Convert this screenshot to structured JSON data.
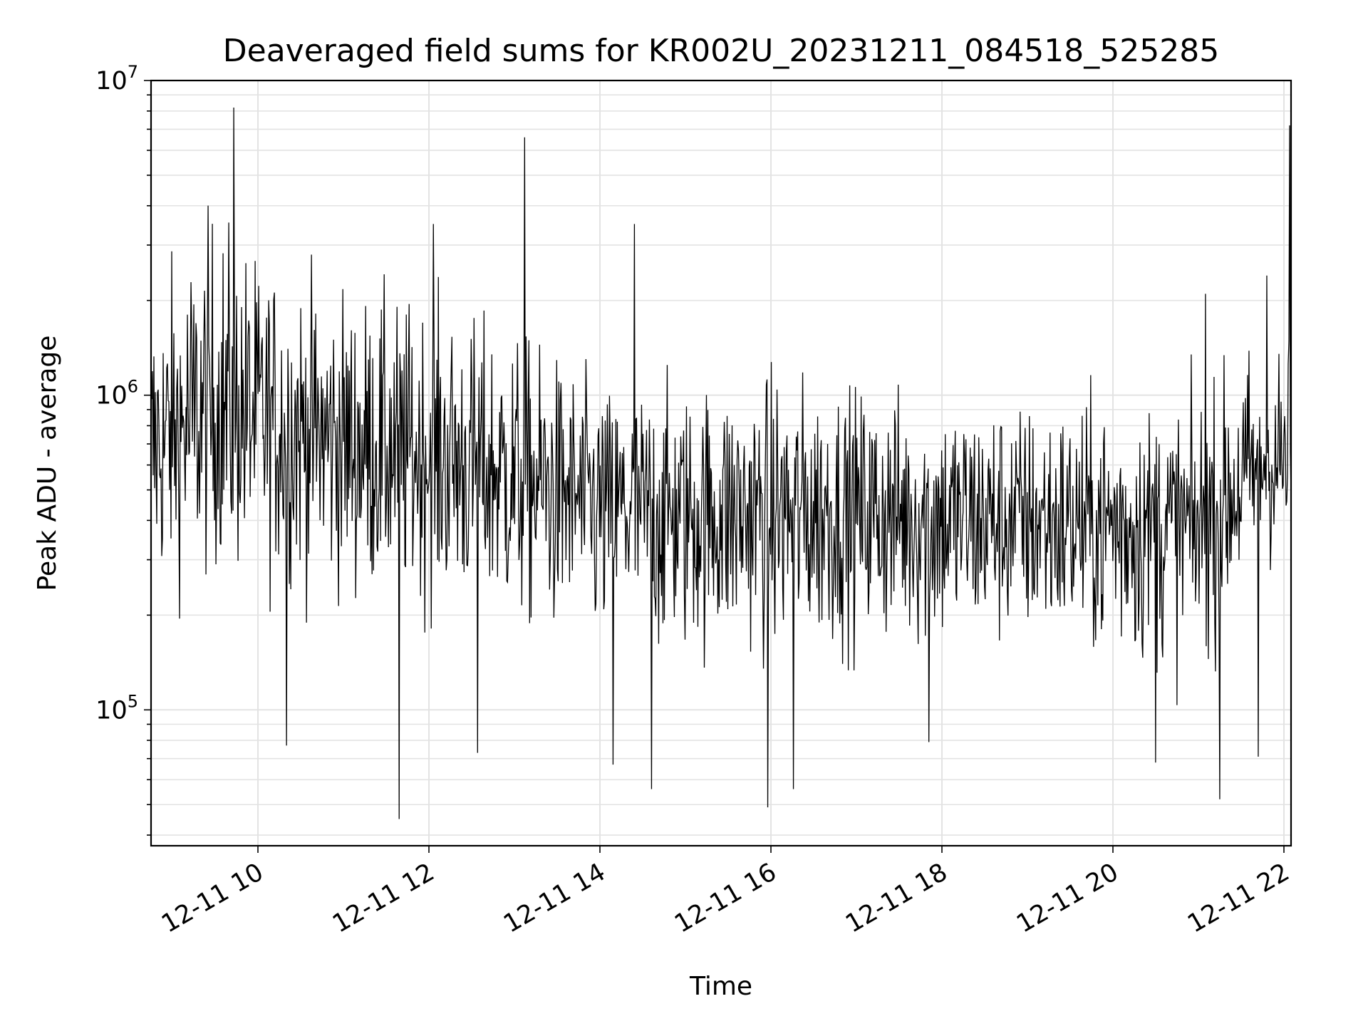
{
  "chart_data": {
    "type": "line",
    "title": "Deaveraged field sums for KR002U_20231211_084518_525285",
    "xlabel": "Time",
    "ylabel": "Peak ADU - average",
    "yscale": "log",
    "ylim": [
      37000,
      10000000
    ],
    "xlim": [
      "2023-12-11 08:45",
      "2023-12-11 22:05"
    ],
    "x_ticks": [
      "12-11 10",
      "12-11 12",
      "12-11 14",
      "12-11 16",
      "12-11 18",
      "12-11 20",
      "12-11 22"
    ],
    "y_ticks": [
      {
        "base": "10",
        "exp": "5"
      },
      {
        "base": "10",
        "exp": "6"
      },
      {
        "base": "10",
        "exp": "7"
      }
    ],
    "grid": true,
    "line_color": "#000000",
    "x_start": "2023-12-11 08:45",
    "x_end": "2023-12-11 22:05",
    "n_points": 1600,
    "series": [
      {
        "envelope": {
          "times": [
            "2023-12-11 08:45",
            "2023-12-11 09:30",
            "2023-12-11 10:00",
            "2023-12-11 11:00",
            "2023-12-11 12:00",
            "2023-12-11 13:00",
            "2023-12-11 14:00",
            "2023-12-11 15:00",
            "2023-12-11 16:00",
            "2023-12-11 17:00",
            "2023-12-11 18:00",
            "2023-12-11 19:00",
            "2023-12-11 20:00",
            "2023-12-11 21:00",
            "2023-12-11 21:45",
            "2023-12-11 22:05"
          ],
          "median": [
            650000,
            900000,
            850000,
            700000,
            650000,
            550000,
            450000,
            420000,
            420000,
            430000,
            410000,
            400000,
            390000,
            380000,
            600000,
            600000
          ],
          "low": [
            250000,
            300000,
            280000,
            250000,
            230000,
            200000,
            160000,
            160000,
            160000,
            170000,
            160000,
            170000,
            150000,
            140000,
            300000,
            300000
          ],
          "high": [
            2000000,
            3500000,
            2500000,
            2000000,
            1800000,
            1500000,
            1000000,
            1000000,
            1100000,
            1000000,
            950000,
            900000,
            900000,
            900000,
            1500000,
            1500000
          ]
        },
        "spikes": [
          {
            "t": "2023-12-11 09:43",
            "v": 8200000
          },
          {
            "t": "2023-12-11 13:07",
            "v": 6600000
          },
          {
            "t": "2023-12-11 14:24",
            "v": 3500000
          },
          {
            "t": "2023-12-11 12:03",
            "v": 3500000
          },
          {
            "t": "2023-12-11 15:58",
            "v": 2000000
          },
          {
            "t": "2023-12-11 21:05",
            "v": 2100000
          },
          {
            "t": "2023-12-11 21:48",
            "v": 2400000
          },
          {
            "t": "2023-12-11 22:04",
            "v": 7200000
          },
          {
            "t": "2023-12-11 11:39",
            "v": 45000
          },
          {
            "t": "2023-12-11 10:20",
            "v": 77000
          },
          {
            "t": "2023-12-11 12:34",
            "v": 73000
          },
          {
            "t": "2023-12-11 14:09",
            "v": 67000
          },
          {
            "t": "2023-12-11 14:36",
            "v": 56000
          },
          {
            "t": "2023-12-11 15:58",
            "v": 49000
          },
          {
            "t": "2023-12-11 16:16",
            "v": 56000
          },
          {
            "t": "2023-12-11 17:51",
            "v": 79000
          },
          {
            "t": "2023-12-11 20:30",
            "v": 68000
          },
          {
            "t": "2023-12-11 21:15",
            "v": 52000
          },
          {
            "t": "2023-12-11 21:42",
            "v": 71000
          }
        ]
      }
    ]
  }
}
